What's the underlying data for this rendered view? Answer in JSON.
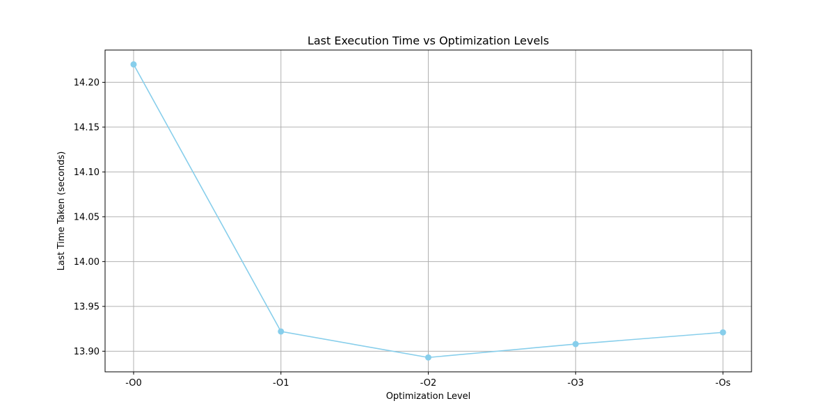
{
  "chart_data": {
    "type": "line",
    "title": "Last Execution Time vs Optimization Levels",
    "xlabel": "Optimization Level",
    "ylabel": "Last Time Taken (seconds)",
    "categories": [
      "-O0",
      "-O1",
      "-O2",
      "-O3",
      "-Os"
    ],
    "series": [
      {
        "values": [
          14.22,
          13.922,
          13.893,
          13.908,
          13.921
        ],
        "color": "#87ceeb",
        "marker": "circle"
      }
    ],
    "ylim": [
      13.877,
      14.236
    ],
    "yticks": [
      13.9,
      13.95,
      14.0,
      14.05,
      14.1,
      14.15,
      14.2
    ],
    "ytick_labels": [
      "13.90",
      "13.95",
      "14.00",
      "14.05",
      "14.10",
      "14.15",
      "14.20"
    ],
    "grid": true,
    "legend": "none"
  }
}
